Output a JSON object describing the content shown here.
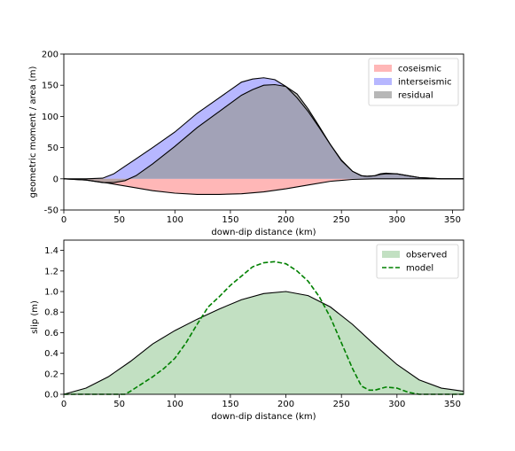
{
  "chart_data": [
    {
      "type": "area",
      "xlabel": "down-dip distance (km)",
      "ylabel": "geometric moment / area (m)",
      "xlim": [
        0,
        360
      ],
      "ylim": [
        -50,
        200
      ],
      "xticks": [
        0,
        50,
        100,
        150,
        200,
        250,
        300,
        350
      ],
      "yticks": [
        -50,
        0,
        50,
        100,
        150,
        200
      ],
      "grid": false,
      "legend_position": "top-right",
      "series": [
        {
          "name": "coseismic",
          "color": "#ff9999",
          "x": [
            0,
            20,
            40,
            60,
            80,
            100,
            120,
            140,
            160,
            180,
            200,
            220,
            240,
            260,
            280,
            300,
            320,
            340,
            360
          ],
          "y": [
            0,
            -2,
            -7,
            -13,
            -19,
            -23,
            -25,
            -25,
            -24,
            -21,
            -16,
            -10,
            -4,
            -1,
            0,
            0,
            0,
            0,
            0
          ]
        },
        {
          "name": "interseismic",
          "color": "#9999ff",
          "x": [
            0,
            20,
            35,
            45,
            55,
            65,
            80,
            100,
            120,
            140,
            160,
            170,
            180,
            190,
            200,
            210,
            220,
            230,
            240,
            250,
            260,
            268,
            273,
            280,
            285,
            290,
            300,
            310,
            320,
            330,
            340,
            360
          ],
          "y": [
            0,
            0,
            1,
            8,
            20,
            32,
            50,
            75,
            105,
            130,
            155,
            160,
            162,
            159,
            148,
            130,
            108,
            82,
            55,
            30,
            12,
            5,
            4,
            5,
            7,
            8,
            8,
            5,
            2,
            1,
            0,
            0
          ]
        },
        {
          "name": "residual",
          "color": "#999999",
          "x": [
            0,
            20,
            35,
            45,
            55,
            65,
            80,
            100,
            120,
            140,
            160,
            170,
            180,
            190,
            200,
            210,
            220,
            230,
            240,
            250,
            260,
            268,
            273,
            280,
            285,
            290,
            300,
            310,
            320,
            330,
            340,
            360
          ],
          "y": [
            0,
            -2,
            -6,
            -6,
            -3,
            5,
            24,
            52,
            82,
            108,
            134,
            143,
            150,
            151,
            148,
            136,
            112,
            84,
            55,
            29,
            12,
            5,
            4,
            5,
            8,
            9,
            8,
            5,
            2,
            1,
            0,
            0
          ]
        }
      ]
    },
    {
      "type": "area",
      "xlabel": "down-dip distance (km)",
      "ylabel": "slip (m)",
      "xlim": [
        0,
        360
      ],
      "ylim": [
        0,
        1.5
      ],
      "xticks": [
        0,
        50,
        100,
        150,
        200,
        250,
        300,
        350
      ],
      "yticks": [
        "0.0",
        "0.2",
        "0.4",
        "0.6",
        "0.8",
        "1.0",
        "1.2",
        "1.4"
      ],
      "grid": false,
      "legend_position": "top-right",
      "series": [
        {
          "name": "observed",
          "style": "filled area",
          "color": "#c2e0c2",
          "x": [
            0,
            20,
            40,
            60,
            80,
            100,
            120,
            140,
            160,
            180,
            200,
            220,
            240,
            260,
            280,
            300,
            320,
            340,
            360
          ],
          "y": [
            0,
            0.06,
            0.17,
            0.32,
            0.49,
            0.62,
            0.73,
            0.83,
            0.92,
            0.98,
            1.0,
            0.96,
            0.85,
            0.68,
            0.48,
            0.29,
            0.14,
            0.06,
            0.03
          ]
        },
        {
          "name": "model",
          "style": "dashed line",
          "color": "#008000",
          "x": [
            0,
            30,
            55,
            60,
            70,
            80,
            90,
            100,
            110,
            120,
            130,
            140,
            150,
            160,
            170,
            180,
            190,
            200,
            210,
            220,
            230,
            240,
            250,
            260,
            268,
            275,
            280,
            290,
            300,
            310,
            320,
            330,
            360
          ],
          "y": [
            0,
            0,
            0,
            0.03,
            0.1,
            0.17,
            0.25,
            0.35,
            0.5,
            0.68,
            0.85,
            0.95,
            1.06,
            1.15,
            1.24,
            1.28,
            1.29,
            1.27,
            1.2,
            1.1,
            0.95,
            0.75,
            0.5,
            0.25,
            0.08,
            0.04,
            0.04,
            0.07,
            0.06,
            0.02,
            0,
            0,
            0
          ]
        }
      ]
    }
  ]
}
